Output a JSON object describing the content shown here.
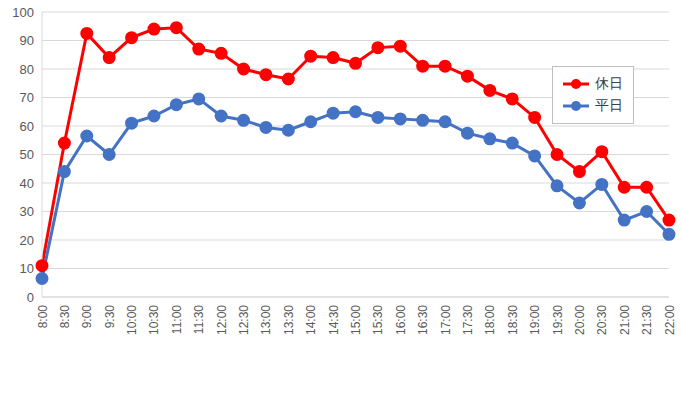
{
  "chart_data": {
    "type": "line",
    "categories": [
      "8:00",
      "8:30",
      "9:00",
      "9:30",
      "10:00",
      "10:30",
      "11:00",
      "11:30",
      "12:00",
      "12:30",
      "13:00",
      "13:30",
      "14:00",
      "14:30",
      "15:00",
      "15:30",
      "16:00",
      "16:30",
      "17:00",
      "17:30",
      "18:00",
      "18:30",
      "19:00",
      "19:30",
      "20:00",
      "20:30",
      "21:00",
      "21:30",
      "22:00"
    ],
    "series": [
      {
        "name": "休日",
        "color": "#ff0000",
        "marker": "circle",
        "values": [
          11,
          54,
          92.5,
          84,
          91,
          94,
          94.5,
          87,
          85.5,
          80,
          78,
          76.5,
          84.5,
          84,
          82,
          87.5,
          88,
          81,
          81,
          77.5,
          72.5,
          69.5,
          63,
          50,
          44,
          51,
          38.5,
          38.5,
          27
        ]
      },
      {
        "name": "平日",
        "color": "#4472c4",
        "marker": "circle",
        "values": [
          6.5,
          44,
          56.5,
          50,
          61,
          63.5,
          67.5,
          69.5,
          63.5,
          62,
          59.5,
          58.5,
          61.5,
          64.5,
          65,
          63,
          62.5,
          62,
          61.5,
          57.5,
          55.5,
          54,
          49.5,
          39,
          33,
          39.5,
          27,
          30,
          22
        ]
      }
    ],
    "ylim": [
      0,
      100
    ],
    "yticks": [
      0,
      10,
      20,
      30,
      40,
      50,
      60,
      70,
      80,
      90,
      100
    ],
    "grid": true,
    "legend": "right"
  }
}
